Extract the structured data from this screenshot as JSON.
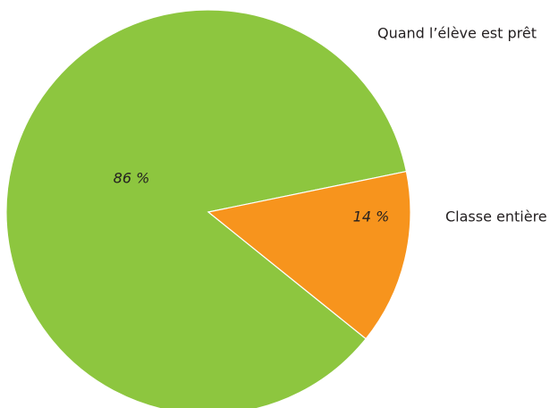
{
  "chart_data": {
    "type": "pie",
    "categories": [
      "Quand l’élève est prêt",
      "Classe entière"
    ],
    "values": [
      86,
      14
    ],
    "value_labels": [
      "86 %",
      "14 %"
    ],
    "colors": [
      "#8dc63f",
      "#f7941d"
    ]
  }
}
